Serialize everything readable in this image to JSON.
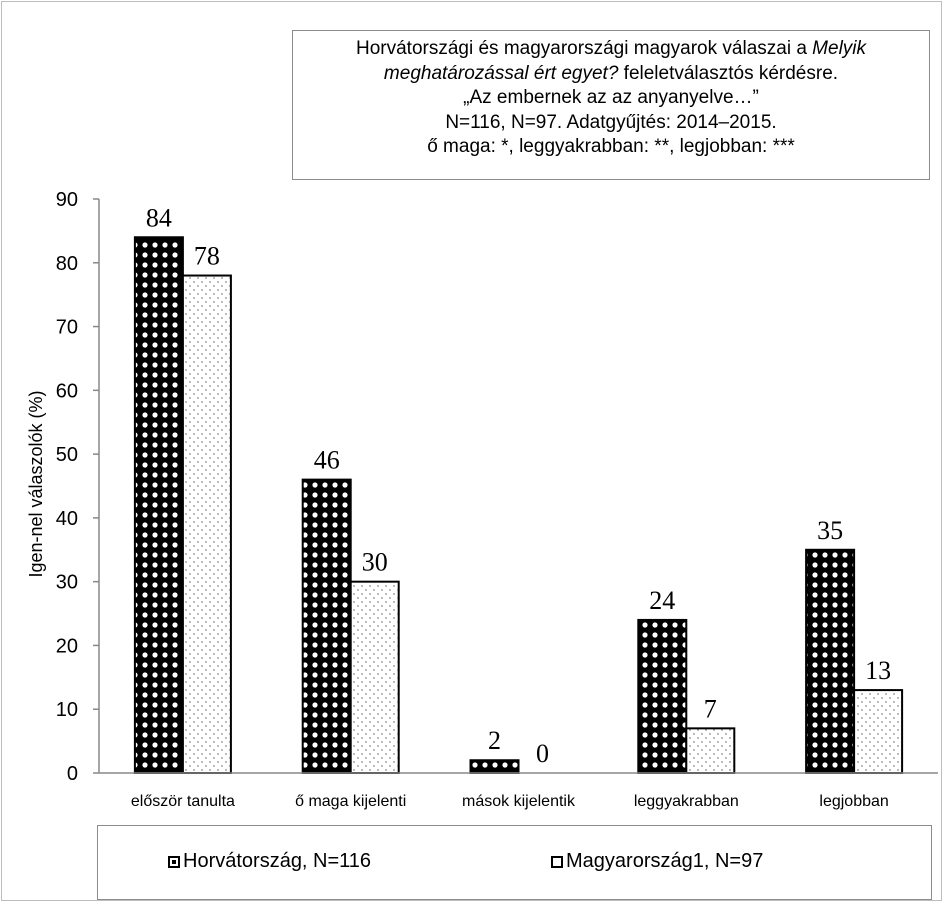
{
  "chart_data": {
    "type": "bar",
    "title_lines": [
      [
        "Horvátországi és magyarországi magyarok válaszai a ",
        "Melyik"
      ],
      [
        "meghatározással ért egyet?",
        " feleletválasztós kérdésre."
      ],
      [
        "„Az embernek az az anyanyelve…”",
        ""
      ],
      [
        "N=116, N=97. Adatgyűjtés: 2014–2015.",
        ""
      ],
      [
        "ő maga: *, leggyakrabban: **, legjobban: ***",
        ""
      ]
    ],
    "ylabel": "Igen-nel válaszolók (%)",
    "xlabel": "",
    "ylim": [
      0,
      90
    ],
    "yticks": [
      0,
      10,
      20,
      30,
      40,
      50,
      60,
      70,
      80,
      90
    ],
    "categories": [
      "először tanulta",
      "ő maga kijelenti",
      "mások kijelentik",
      "leggyakrabban",
      "legjobban"
    ],
    "series": [
      {
        "name": "Horvátország, N=116",
        "values": [
          84,
          46,
          2,
          24,
          35
        ],
        "pattern": "dark-checker"
      },
      {
        "name": "Magyarország1, N=97",
        "values": [
          78,
          30,
          0,
          7,
          13
        ],
        "pattern": "light-dots"
      }
    ],
    "grid": false,
    "legend_position": "bottom"
  }
}
